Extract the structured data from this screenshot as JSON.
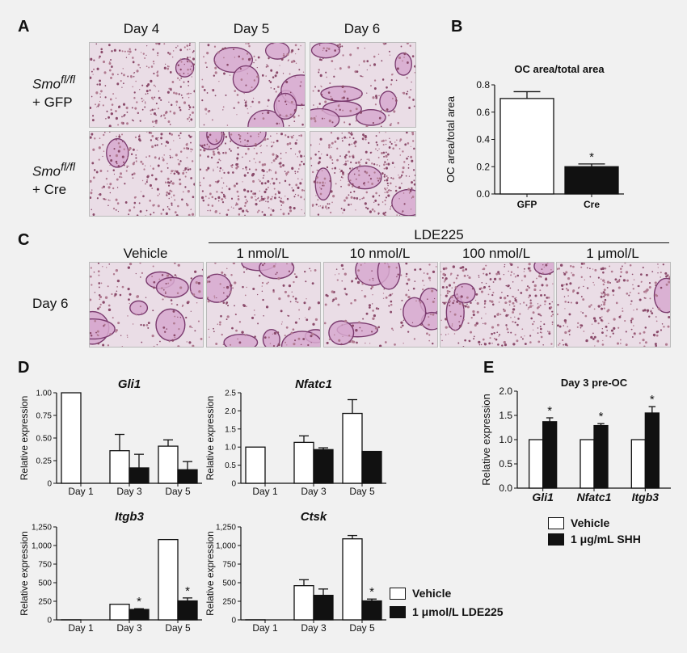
{
  "panels": {
    "a": {
      "letter": "A",
      "columns": [
        "Day 4",
        "Day 5",
        "Day 6"
      ],
      "rows": [
        {
          "gene": "Smo",
          "sup": "fl/fl",
          "treatment": "+ GFP"
        },
        {
          "gene": "Smo",
          "sup": "fl/fl",
          "treatment": "+ Cre"
        }
      ]
    },
    "b": {
      "letter": "B"
    },
    "c": {
      "letter": "C",
      "group_label": "LDE225",
      "columns": [
        "Vehicle",
        "1 nmol/L",
        "10 nmol/L",
        "100 nmol/L",
        "1 μmol/L"
      ],
      "row_label": "Day 6"
    },
    "d": {
      "letter": "D"
    },
    "e": {
      "letter": "E"
    }
  },
  "legends": {
    "d": [
      {
        "label": "Vehicle",
        "color": "#ffffff"
      },
      {
        "label": "1 μmol/L LDE225",
        "color": "#111111"
      }
    ],
    "e": [
      {
        "label": "Vehicle",
        "color": "#ffffff"
      },
      {
        "label": "1 μg/mL SHH",
        "color": "#111111"
      }
    ]
  },
  "chart_data": [
    {
      "id": "B",
      "type": "bar",
      "title": "OC area/total area",
      "xlabel": "",
      "ylabel": "OC area/total area",
      "categories": [
        "GFP",
        "Cre"
      ],
      "values": [
        0.7,
        0.2
      ],
      "errors": [
        0.05,
        0.02
      ],
      "colors": [
        "#ffffff",
        "#111111"
      ],
      "significance": [
        "",
        "*"
      ],
      "ylim": [
        0,
        0.8
      ],
      "yticks": [
        "0.0",
        "0.2",
        "0.4",
        "0.6",
        "0.8"
      ]
    },
    {
      "id": "D1",
      "type": "bar",
      "title": "Gli1",
      "ylabel": "Relative expression",
      "categories": [
        "Day 1",
        "Day 3",
        "Day 5"
      ],
      "series": [
        {
          "values": [
            1.0,
            0.36,
            0.41
          ],
          "errors": [
            0,
            0.18,
            0.07
          ]
        },
        {
          "values": [
            null,
            0.17,
            0.15
          ],
          "errors": [
            0,
            0.15,
            0.09
          ]
        }
      ],
      "significance": [
        [
          "",
          "",
          ""
        ],
        [
          "",
          "",
          ""
        ]
      ],
      "ylim": [
        0,
        1.0
      ],
      "yticks": [
        "0",
        "0.25",
        "0.50",
        "0.75",
        "1.00"
      ]
    },
    {
      "id": "D2",
      "type": "bar",
      "title": "Nfatc1",
      "ylabel": "Relative expression",
      "categories": [
        "Day 1",
        "Day 3",
        "Day 5"
      ],
      "series": [
        {
          "values": [
            1.0,
            1.13,
            1.93
          ],
          "errors": [
            0,
            0.18,
            0.38
          ]
        },
        {
          "values": [
            null,
            0.93,
            0.88
          ],
          "errors": [
            0,
            0.05,
            0
          ]
        }
      ],
      "significance": [
        [
          "",
          "",
          ""
        ],
        [
          "",
          "",
          ""
        ]
      ],
      "ylim": [
        0,
        2.5
      ],
      "yticks": [
        "0",
        "0.5",
        "1.0",
        "1.5",
        "2.0",
        "2.5"
      ]
    },
    {
      "id": "D3",
      "type": "bar",
      "title": "Itgb3",
      "ylabel": "Relative expression",
      "categories": [
        "Day 1",
        "Day 3",
        "Day 5"
      ],
      "series": [
        {
          "values": [
            1,
            210,
            1080
          ],
          "errors": [
            0,
            0,
            0
          ]
        },
        {
          "values": [
            null,
            140,
            255
          ],
          "errors": [
            0,
            10,
            40
          ]
        }
      ],
      "significance": [
        [
          "",
          "",
          ""
        ],
        [
          "",
          "*",
          "*"
        ]
      ],
      "ylim": [
        0,
        1250
      ],
      "yticks": [
        "0",
        "250",
        "500",
        "750",
        "1,000",
        "1,250"
      ]
    },
    {
      "id": "D4",
      "type": "bar",
      "title": "Ctsk",
      "ylabel": "Relative expression",
      "categories": [
        "Day 1",
        "Day 3",
        "Day 5"
      ],
      "series": [
        {
          "values": [
            1,
            460,
            1090
          ],
          "errors": [
            0,
            80,
            45
          ]
        },
        {
          "values": [
            null,
            330,
            255
          ],
          "errors": [
            0,
            85,
            25
          ]
        }
      ],
      "significance": [
        [
          "",
          "",
          ""
        ],
        [
          "",
          "",
          "*"
        ]
      ],
      "ylim": [
        0,
        1250
      ],
      "yticks": [
        "0",
        "250",
        "500",
        "750",
        "1,000",
        "1,250"
      ]
    },
    {
      "id": "E",
      "type": "bar",
      "title": "Day 3 pre-OC",
      "ylabel": "Relative expression",
      "categories": [
        "Gli1",
        "Nfatc1",
        "Itgb3"
      ],
      "series": [
        {
          "values": [
            1.0,
            1.0,
            1.0
          ],
          "errors": [
            0,
            0,
            0
          ]
        },
        {
          "values": [
            1.37,
            1.29,
            1.55
          ],
          "errors": [
            0.08,
            0.04,
            0.13
          ]
        }
      ],
      "significance": [
        [
          "",
          "",
          ""
        ],
        [
          "*",
          "*",
          "*"
        ]
      ],
      "ylim": [
        0,
        2.0
      ],
      "yticks": [
        "0.0",
        "0.5",
        "1.0",
        "1.5",
        "2.0"
      ]
    }
  ]
}
